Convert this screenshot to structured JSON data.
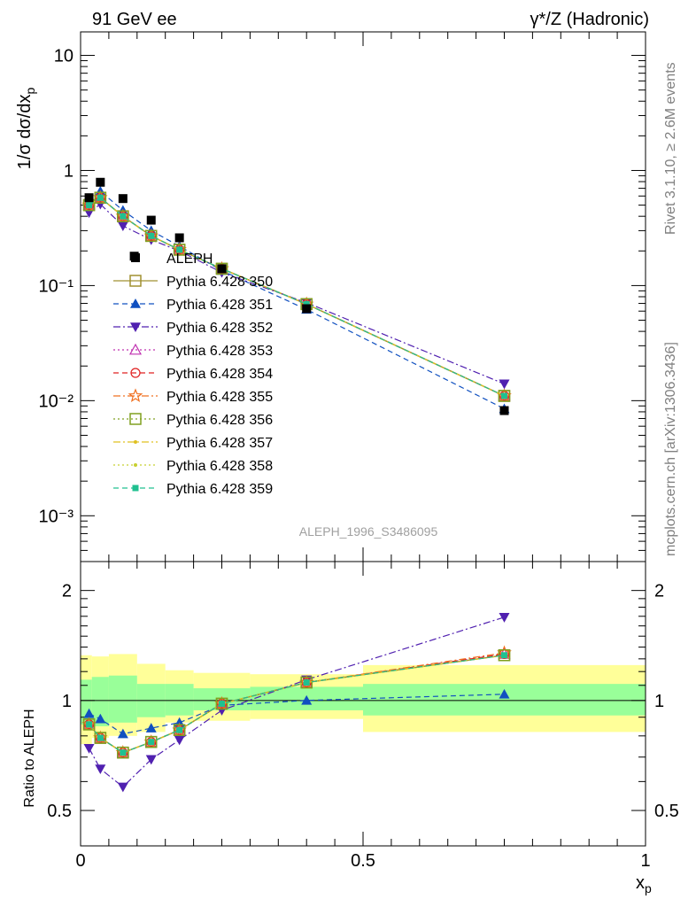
{
  "header": {
    "left_title": "91 GeV ee",
    "right_title": "γ*/Z (Hadronic)"
  },
  "side_labels": {
    "rivet": "Rivet 3.1.10, ≥ 2.6M events",
    "mcplots": "mcplots.cern.ch [arXiv:1306.3436]"
  },
  "analysis_id": "ALEPH_1996_S3486095",
  "colors": {
    "data": "#000000",
    "band_inner": "#99ff99",
    "band_outer": "#ffff99"
  },
  "chart_data": [
    {
      "type": "scatter",
      "panel": "main",
      "ylabel": "1/σ dσ/dx_p",
      "yscale": "log",
      "ylim": [
        0.0004,
        16
      ],
      "xlim": [
        0,
        1
      ],
      "y_tick_labels": [
        "10⁻³",
        "10⁻²",
        "10⁻¹",
        "1",
        "10"
      ],
      "x": [
        0.015,
        0.035,
        0.075,
        0.125,
        0.175,
        0.25,
        0.4,
        0.75
      ],
      "series": [
        {
          "name": "ALEPH",
          "color": "#000000",
          "marker": "square-filled",
          "line": "none",
          "x": [
            0.015,
            0.035,
            0.075,
            0.095,
            0.125,
            0.175,
            0.25,
            0.4,
            0.75
          ],
          "values": [
            0.58,
            0.79,
            0.57,
            0.18,
            0.37,
            0.26,
            0.14,
            0.063,
            0.0082
          ]
        },
        {
          "name": "Pythia 6.428 350",
          "color": "#a09030",
          "marker": "square-open",
          "line": "solid",
          "values": [
            0.5,
            0.58,
            0.4,
            0.27,
            0.205,
            0.14,
            0.069,
            0.011
          ]
        },
        {
          "name": "Pythia 6.428 351",
          "color": "#1050c0",
          "marker": "triangle-up",
          "line": "dashed",
          "values": [
            0.53,
            0.66,
            0.45,
            0.3,
            0.22,
            0.135,
            0.062,
            0.0085
          ]
        },
        {
          "name": "Pythia 6.428 352",
          "color": "#5020b0",
          "marker": "triangle-down",
          "line": "dashdot",
          "values": [
            0.43,
            0.51,
            0.33,
            0.25,
            0.2,
            0.13,
            0.071,
            0.014
          ]
        },
        {
          "name": "Pythia 6.428 353",
          "color": "#c030b0",
          "marker": "triangle-up-open",
          "line": "dotted",
          "values": [
            0.5,
            0.58,
            0.4,
            0.27,
            0.205,
            0.14,
            0.069,
            0.011
          ]
        },
        {
          "name": "Pythia 6.428 354",
          "color": "#e02020",
          "marker": "circle-open",
          "line": "dashed",
          "values": [
            0.5,
            0.58,
            0.4,
            0.27,
            0.205,
            0.14,
            0.069,
            0.011
          ]
        },
        {
          "name": "Pythia 6.428 355",
          "color": "#f07020",
          "marker": "star-open",
          "line": "dashdot",
          "values": [
            0.5,
            0.58,
            0.4,
            0.27,
            0.205,
            0.14,
            0.069,
            0.011
          ]
        },
        {
          "name": "Pythia 6.428 356",
          "color": "#80a020",
          "marker": "square-open",
          "line": "dotted",
          "values": [
            0.5,
            0.58,
            0.4,
            0.27,
            0.205,
            0.14,
            0.069,
            0.011
          ]
        },
        {
          "name": "Pythia 6.428 357",
          "color": "#e0c020",
          "marker": "dot",
          "line": "dashdot",
          "values": [
            0.5,
            0.58,
            0.4,
            0.27,
            0.205,
            0.14,
            0.069,
            0.011
          ]
        },
        {
          "name": "Pythia 6.428 358",
          "color": "#c8d030",
          "marker": "dot",
          "line": "dotted",
          "values": [
            0.5,
            0.58,
            0.4,
            0.27,
            0.205,
            0.14,
            0.069,
            0.011
          ]
        },
        {
          "name": "Pythia 6.428 359",
          "color": "#20c090",
          "marker": "square-small",
          "line": "dashed",
          "values": [
            0.5,
            0.58,
            0.4,
            0.27,
            0.205,
            0.14,
            0.069,
            0.011
          ]
        }
      ]
    },
    {
      "type": "line",
      "panel": "ratio",
      "ylabel": "Ratio to ALEPH",
      "xlabel": "x_p",
      "yscale": "log",
      "ylim": [
        0.4,
        2.4
      ],
      "xlim": [
        0,
        1
      ],
      "y_ticks": [
        0.5,
        1,
        2
      ],
      "y_tick_labels": [
        "0.5",
        "1",
        "2"
      ],
      "x_ticks": [
        0,
        0.5,
        1
      ],
      "x_tick_labels": [
        "0",
        "0.5",
        "1"
      ],
      "x": [
        0.015,
        0.035,
        0.075,
        0.125,
        0.175,
        0.25,
        0.4,
        0.75
      ],
      "bands": {
        "x_edges": [
          0,
          0.02,
          0.05,
          0.1,
          0.15,
          0.2,
          0.3,
          0.5,
          1.0
        ],
        "inner": [
          [
            0.86,
            1.14
          ],
          [
            0.85,
            1.16
          ],
          [
            0.87,
            1.17
          ],
          [
            0.9,
            1.11
          ],
          [
            0.91,
            1.11
          ],
          [
            0.94,
            1.08
          ],
          [
            0.94,
            1.09
          ],
          [
            0.91,
            1.11
          ]
        ],
        "outer": [
          [
            0.76,
            1.33
          ],
          [
            0.79,
            1.32
          ],
          [
            0.8,
            1.34
          ],
          [
            0.82,
            1.26
          ],
          [
            0.87,
            1.21
          ],
          [
            0.88,
            1.19
          ],
          [
            0.89,
            1.18
          ],
          [
            0.82,
            1.25
          ]
        ]
      },
      "series": [
        {
          "name": "Pythia 6.428 350",
          "color": "#a09030",
          "marker": "square-open",
          "line": "solid",
          "values": [
            0.86,
            0.79,
            0.72,
            0.77,
            0.83,
            0.98,
            1.12,
            1.33
          ]
        },
        {
          "name": "Pythia 6.428 351",
          "color": "#1050c0",
          "marker": "triangle-up",
          "line": "dashed",
          "values": [
            0.92,
            0.89,
            0.81,
            0.84,
            0.87,
            0.97,
            1.0,
            1.04
          ]
        },
        {
          "name": "Pythia 6.428 352",
          "color": "#5020b0",
          "marker": "triangle-down",
          "line": "dashdot",
          "values": [
            0.74,
            0.65,
            0.58,
            0.69,
            0.78,
            0.94,
            1.14,
            1.69
          ]
        },
        {
          "name": "Pythia 6.428 353",
          "color": "#c030b0",
          "marker": "triangle-up-open",
          "line": "dotted",
          "values": [
            0.86,
            0.79,
            0.72,
            0.77,
            0.83,
            0.98,
            1.12,
            1.34
          ]
        },
        {
          "name": "Pythia 6.428 354",
          "color": "#e02020",
          "marker": "circle-open",
          "line": "dashed",
          "values": [
            0.86,
            0.79,
            0.72,
            0.77,
            0.83,
            0.98,
            1.12,
            1.34
          ]
        },
        {
          "name": "Pythia 6.428 355",
          "color": "#f07020",
          "marker": "star-open",
          "line": "dashdot",
          "values": [
            0.86,
            0.79,
            0.72,
            0.77,
            0.83,
            0.98,
            1.12,
            1.35
          ]
        },
        {
          "name": "Pythia 6.428 356",
          "color": "#80a020",
          "marker": "square-open",
          "line": "dotted",
          "values": [
            0.86,
            0.79,
            0.72,
            0.77,
            0.83,
            0.98,
            1.12,
            1.33
          ]
        },
        {
          "name": "Pythia 6.428 357",
          "color": "#e0c020",
          "marker": "dot",
          "line": "dashdot",
          "values": [
            0.86,
            0.79,
            0.72,
            0.77,
            0.83,
            0.98,
            1.12,
            1.33
          ]
        },
        {
          "name": "Pythia 6.428 358",
          "color": "#c8d030",
          "marker": "dot",
          "line": "dotted",
          "values": [
            0.86,
            0.79,
            0.72,
            0.77,
            0.83,
            0.98,
            1.12,
            1.33
          ]
        },
        {
          "name": "Pythia 6.428 359",
          "color": "#20c090",
          "marker": "square-small",
          "line": "dashed",
          "values": [
            0.86,
            0.79,
            0.72,
            0.77,
            0.83,
            0.98,
            1.12,
            1.33
          ]
        }
      ]
    }
  ]
}
